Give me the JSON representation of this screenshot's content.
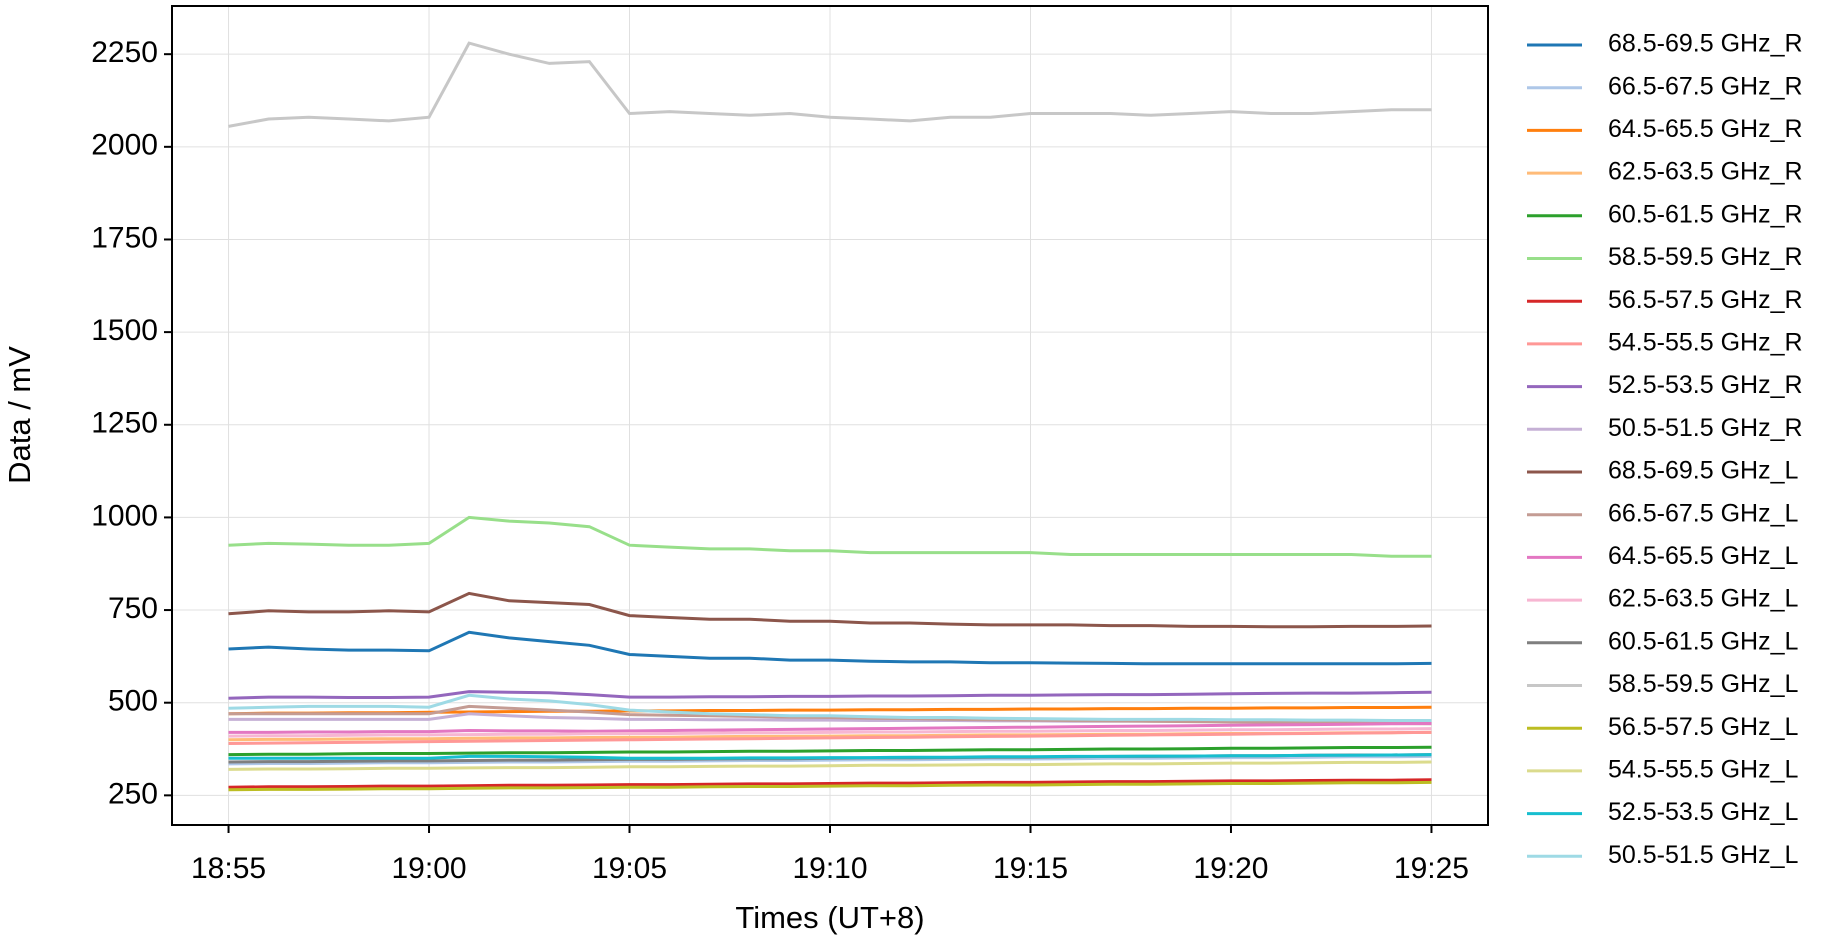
{
  "chart_data": {
    "type": "line",
    "xlabel": "Times (UT+8)",
    "ylabel": "Data / mV",
    "x": [
      "18:55",
      "18:56",
      "18:57",
      "18:58",
      "18:59",
      "19:00",
      "19:01",
      "19:02",
      "19:03",
      "19:04",
      "19:05",
      "19:06",
      "19:07",
      "19:08",
      "19:09",
      "19:10",
      "19:11",
      "19:12",
      "19:13",
      "19:14",
      "19:15",
      "19:16",
      "19:17",
      "19:18",
      "19:19",
      "19:20",
      "19:21",
      "19:22",
      "19:23",
      "19:24",
      "19:25"
    ],
    "xticks": [
      "18:55",
      "19:00",
      "19:05",
      "19:10",
      "19:15",
      "19:20",
      "19:25"
    ],
    "ylim": [
      170,
      2380
    ],
    "yticks": [
      250,
      500,
      750,
      1000,
      1250,
      1500,
      1750,
      2000,
      2250
    ],
    "grid": true,
    "legend": "outside right",
    "series": [
      {
        "name": "68.5-69.5 GHz_R",
        "color": "#1f77b4",
        "values": [
          645,
          650,
          645,
          642,
          642,
          640,
          690,
          675,
          665,
          655,
          630,
          625,
          620,
          620,
          615,
          615,
          612,
          610,
          610,
          608,
          608,
          607,
          606,
          605,
          605,
          605,
          605,
          605,
          605,
          605,
          606
        ]
      },
      {
        "name": "66.5-67.5 GHz_R",
        "color": "#aec7e8",
        "values": [
          335,
          336,
          336,
          337,
          338,
          338,
          339,
          340,
          340,
          341,
          342,
          342,
          343,
          344,
          344,
          345,
          346,
          346,
          347,
          348,
          348,
          349,
          350,
          350,
          351,
          352,
          352,
          353,
          354,
          354,
          355
        ]
      },
      {
        "name": "64.5-65.5 GHz_R",
        "color": "#ff7f0e",
        "values": [
          470,
          472,
          472,
          473,
          473,
          474,
          475,
          476,
          477,
          477,
          478,
          478,
          479,
          479,
          480,
          480,
          481,
          481,
          482,
          482,
          483,
          483,
          484,
          484,
          485,
          485,
          486,
          486,
          487,
          487,
          488
        ]
      },
      {
        "name": "62.5-63.5 GHz_R",
        "color": "#ffbb78",
        "values": [
          400,
          401,
          401,
          402,
          403,
          403,
          404,
          405,
          405,
          406,
          407,
          407,
          408,
          409,
          409,
          410,
          411,
          411,
          412,
          413,
          413,
          414,
          415,
          415,
          416,
          417,
          417,
          418,
          419,
          419,
          420
        ]
      },
      {
        "name": "60.5-61.5 GHz_R",
        "color": "#2ca02c",
        "values": [
          360,
          361,
          361,
          362,
          363,
          363,
          364,
          365,
          365,
          366,
          367,
          367,
          368,
          369,
          369,
          370,
          371,
          371,
          372,
          373,
          373,
          374,
          375,
          375,
          376,
          377,
          377,
          378,
          379,
          379,
          380
        ]
      },
      {
        "name": "58.5-59.5 GHz_R",
        "color": "#98df8a",
        "values": [
          925,
          930,
          928,
          925,
          925,
          930,
          1000,
          990,
          985,
          975,
          925,
          920,
          915,
          915,
          910,
          910,
          905,
          905,
          905,
          905,
          905,
          900,
          900,
          900,
          900,
          900,
          900,
          900,
          900,
          895,
          895
        ]
      },
      {
        "name": "56.5-57.5 GHz_R",
        "color": "#d62728",
        "values": [
          272,
          273,
          273,
          274,
          275,
          275,
          276,
          277,
          277,
          278,
          279,
          279,
          280,
          281,
          281,
          282,
          283,
          283,
          284,
          285,
          285,
          286,
          287,
          287,
          288,
          289,
          289,
          290,
          291,
          291,
          292
        ]
      },
      {
        "name": "54.5-55.5 GHz_R",
        "color": "#ff9896",
        "values": [
          390,
          391,
          392,
          393,
          394,
          395,
          396,
          397,
          398,
          399,
          400,
          401,
          402,
          403,
          404,
          405,
          406,
          407,
          408,
          409,
          410,
          411,
          412,
          413,
          414,
          415,
          416,
          417,
          418,
          419,
          420
        ]
      },
      {
        "name": "52.5-53.5 GHz_R",
        "color": "#9467bd",
        "values": [
          512,
          515,
          515,
          514,
          514,
          515,
          530,
          528,
          527,
          522,
          515,
          515,
          516,
          516,
          517,
          517,
          518,
          518,
          519,
          520,
          520,
          521,
          522,
          522,
          523,
          524,
          525,
          526,
          526,
          527,
          528
        ]
      },
      {
        "name": "50.5-51.5 GHz_R",
        "color": "#c5b0d5",
        "values": [
          455,
          455,
          455,
          455,
          455,
          455,
          470,
          465,
          460,
          458,
          455,
          455,
          454,
          454,
          453,
          453,
          452,
          452,
          452,
          451,
          451,
          450,
          450,
          450,
          450,
          449,
          449,
          449,
          448,
          448,
          448
        ]
      },
      {
        "name": "68.5-69.5 GHz_L",
        "color": "#8c564b",
        "values": [
          740,
          748,
          745,
          745,
          748,
          745,
          795,
          775,
          770,
          765,
          735,
          730,
          725,
          725,
          720,
          720,
          715,
          715,
          712,
          710,
          710,
          710,
          708,
          708,
          706,
          706,
          705,
          705,
          706,
          706,
          707
        ]
      },
      {
        "name": "66.5-67.5 GHz_L",
        "color": "#c49c94",
        "values": [
          470,
          470,
          470,
          470,
          470,
          470,
          490,
          485,
          480,
          475,
          468,
          466,
          465,
          463,
          461,
          460,
          458,
          457,
          455,
          454,
          453,
          452,
          451,
          450,
          449,
          448,
          447,
          446,
          445,
          444,
          443
        ]
      },
      {
        "name": "64.5-65.5 GHz_L",
        "color": "#e377c2",
        "values": [
          420,
          420,
          421,
          421,
          422,
          422,
          425,
          424,
          424,
          423,
          424,
          425,
          426,
          427,
          428,
          429,
          430,
          431,
          432,
          433,
          434,
          435,
          436,
          437,
          438,
          439,
          440,
          441,
          442,
          443,
          444
        ]
      },
      {
        "name": "62.5-63.5 GHz_L",
        "color": "#f7b6d2",
        "values": [
          410,
          411,
          411,
          412,
          413,
          413,
          414,
          415,
          415,
          416,
          417,
          417,
          418,
          419,
          419,
          420,
          421,
          421,
          422,
          423,
          423,
          424,
          425,
          425,
          426,
          427,
          427,
          428,
          429,
          429,
          430
        ]
      },
      {
        "name": "60.5-61.5 GHz_L",
        "color": "#7f7f7f",
        "values": [
          340,
          341,
          341,
          342,
          343,
          343,
          344,
          345,
          345,
          346,
          347,
          347,
          348,
          349,
          349,
          350,
          351,
          351,
          352,
          353,
          353,
          354,
          355,
          355,
          356,
          357,
          357,
          358,
          359,
          359,
          360
        ]
      },
      {
        "name": "58.5-59.5 GHz_L",
        "color": "#c7c7c7",
        "values": [
          2055,
          2075,
          2080,
          2075,
          2070,
          2080,
          2280,
          2250,
          2225,
          2230,
          2090,
          2095,
          2090,
          2085,
          2090,
          2080,
          2075,
          2070,
          2080,
          2080,
          2090,
          2090,
          2090,
          2085,
          2090,
          2095,
          2090,
          2090,
          2095,
          2100,
          2100
        ]
      },
      {
        "name": "56.5-57.5 GHz_L",
        "color": "#bcbd22",
        "values": [
          265,
          266,
          266,
          267,
          268,
          268,
          269,
          270,
          270,
          271,
          272,
          272,
          273,
          274,
          274,
          275,
          276,
          276,
          277,
          278,
          278,
          279,
          280,
          280,
          281,
          282,
          282,
          283,
          284,
          284,
          285
        ]
      },
      {
        "name": "54.5-55.5 GHz_L",
        "color": "#dbdb8d",
        "values": [
          320,
          321,
          321,
          322,
          323,
          323,
          324,
          325,
          325,
          326,
          327,
          327,
          328,
          329,
          329,
          330,
          331,
          331,
          332,
          333,
          333,
          334,
          335,
          335,
          336,
          337,
          337,
          338,
          339,
          339,
          340
        ]
      },
      {
        "name": "52.5-53.5 GHz_L",
        "color": "#17becf",
        "values": [
          350,
          350,
          350,
          350,
          350,
          350,
          355,
          355,
          354,
          353,
          350,
          350,
          350,
          351,
          351,
          352,
          352,
          353,
          353,
          354,
          354,
          355,
          355,
          356,
          356,
          357,
          357,
          358,
          358,
          359,
          360
        ]
      },
      {
        "name": "50.5-51.5 GHz_L",
        "color": "#9edae5",
        "values": [
          485,
          488,
          490,
          490,
          490,
          488,
          520,
          510,
          505,
          495,
          480,
          475,
          470,
          468,
          465,
          465,
          462,
          460,
          460,
          458,
          457,
          456,
          455,
          455,
          455,
          454,
          454,
          453,
          453,
          452,
          452
        ]
      }
    ]
  }
}
